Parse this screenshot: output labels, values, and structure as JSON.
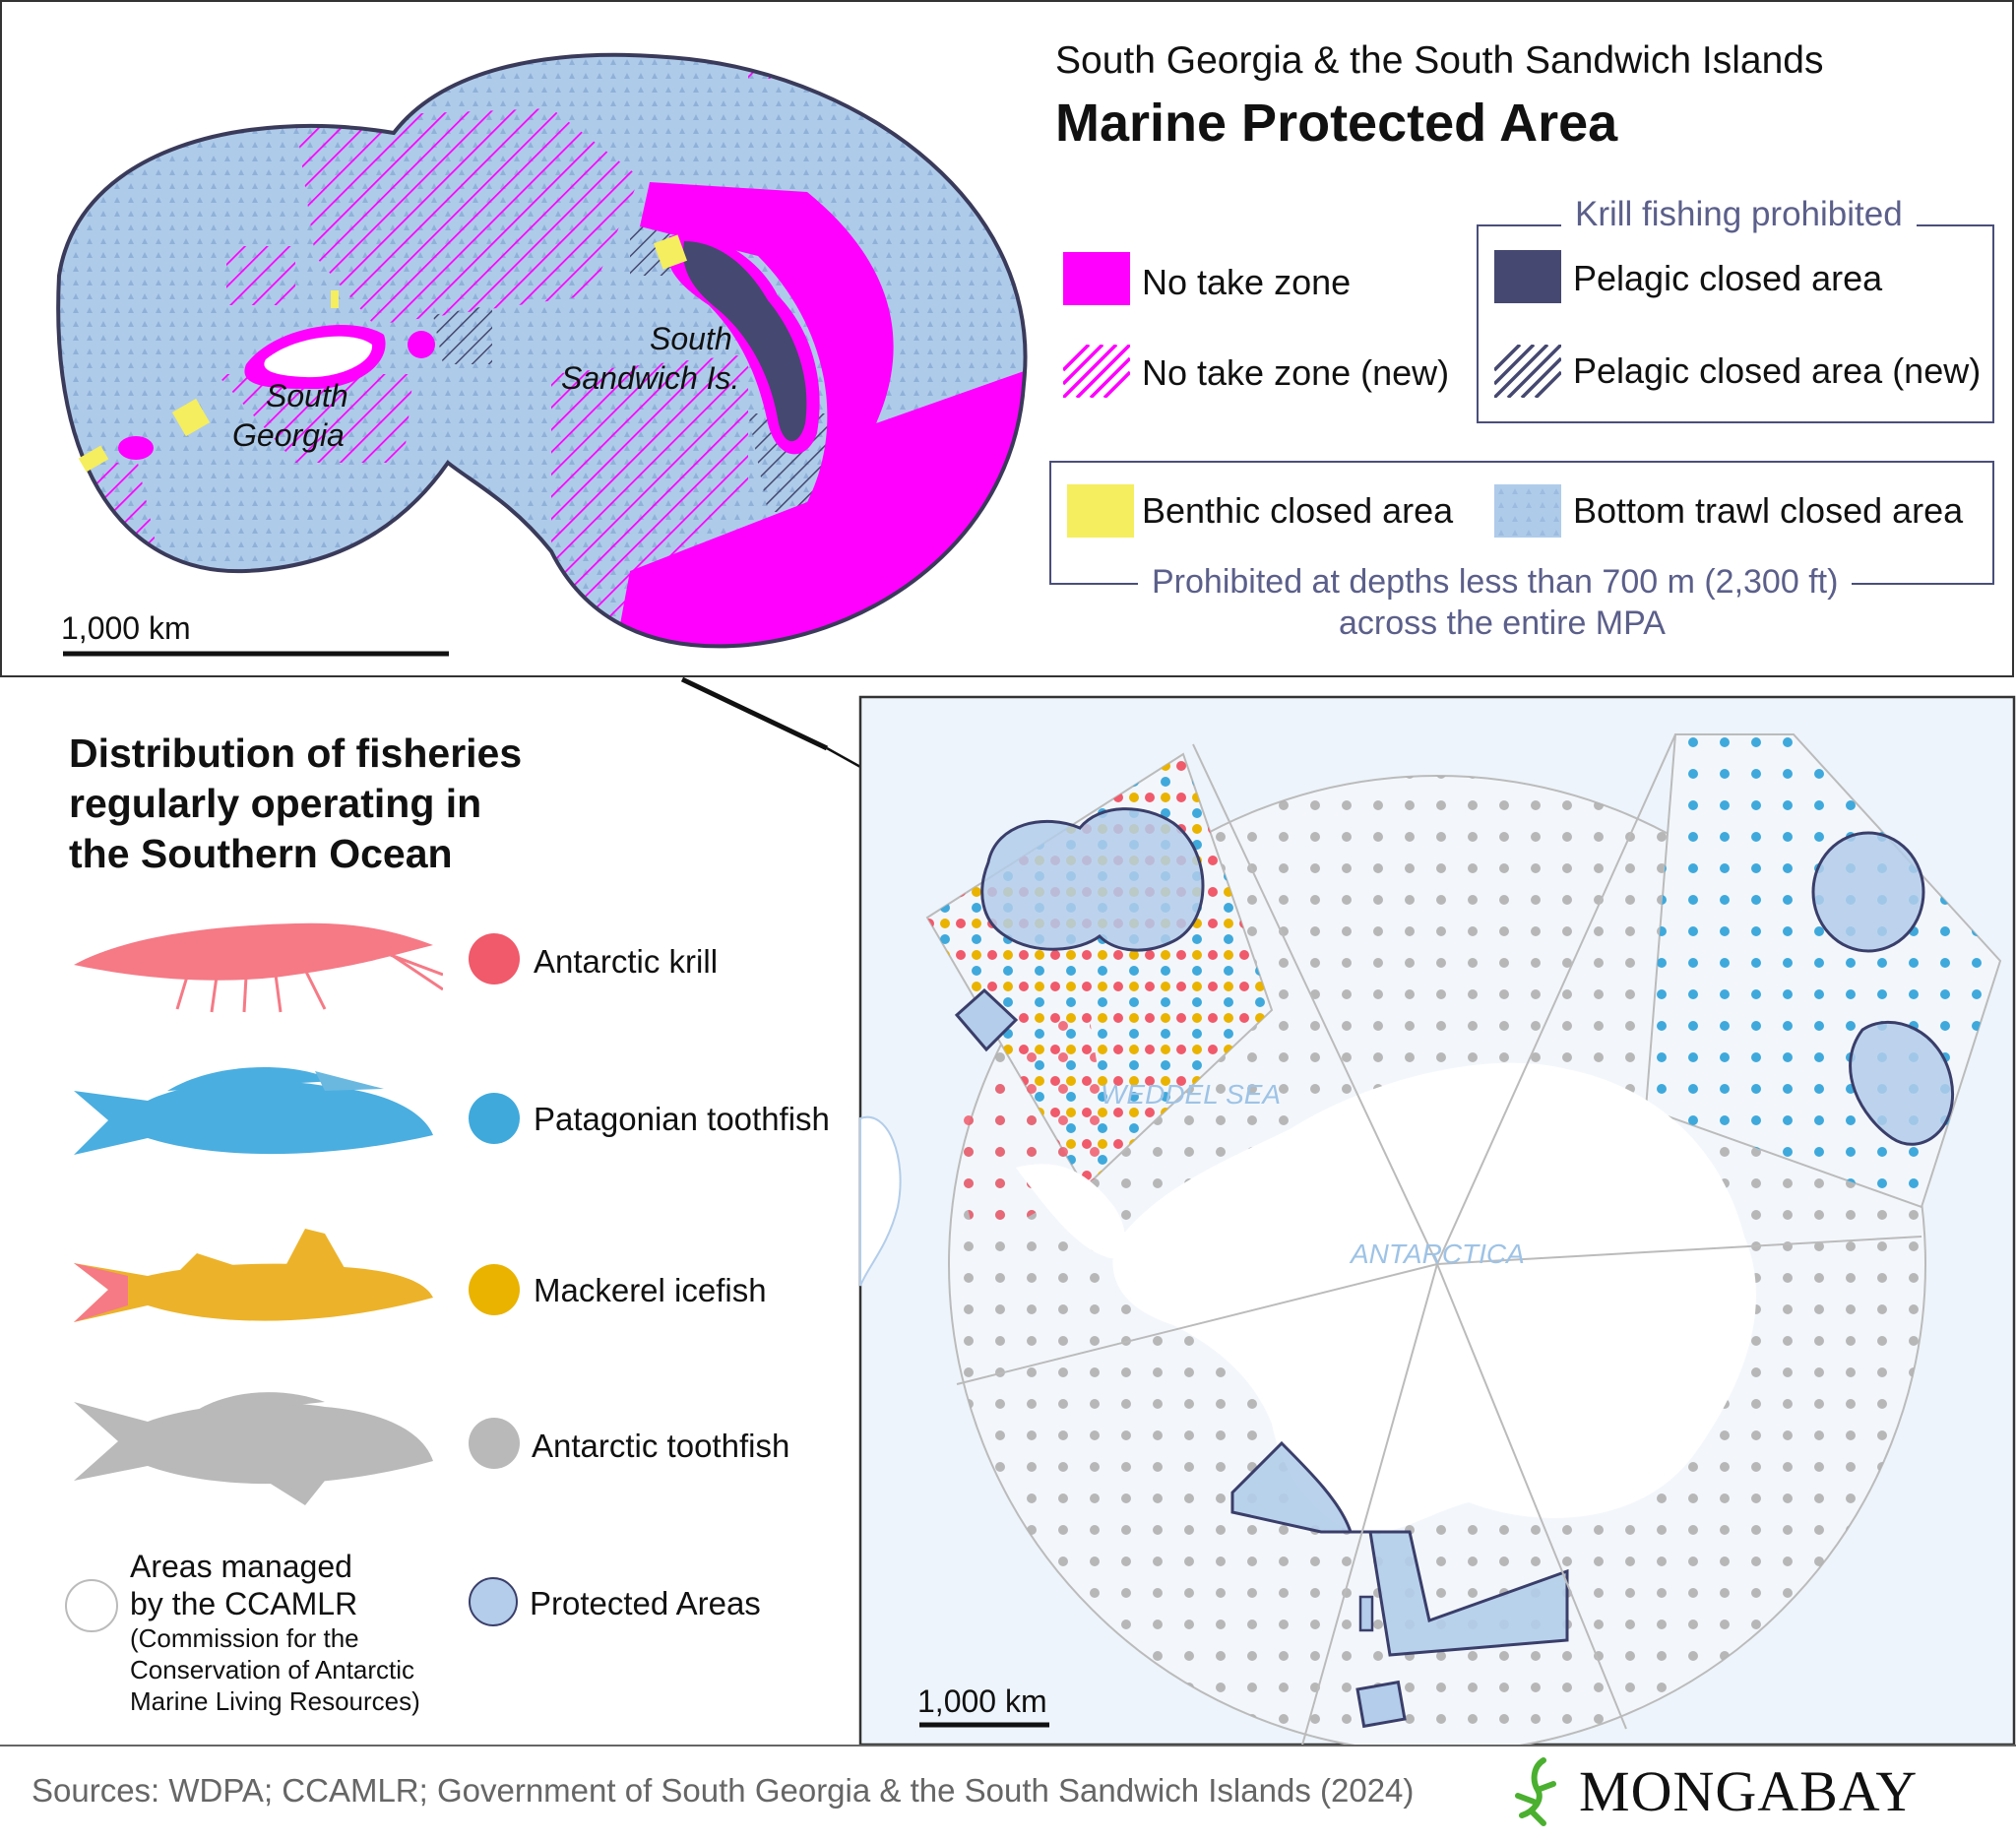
{
  "top_panel": {
    "title_line1": "South Georgia & the South Sandwich Islands",
    "title_line2": "Marine Protected Area",
    "place_labels": {
      "south_georgia_1": "South",
      "south_georgia_2": "Georgia",
      "south_sandwich_1": "South",
      "south_sandwich_2": "Sandwich Is."
    },
    "scale_label": "1,000 km",
    "legend": {
      "no_take": "No take zone",
      "no_take_new": "No take zone (new)",
      "krill_group_title": "Krill fishing prohibited",
      "pelagic": "Pelagic closed area",
      "pelagic_new": "Pelagic closed area (new)",
      "benthic": "Benthic closed area",
      "bottom_trawl": "Bottom trawl closed area",
      "depth_note_1": "Prohibited at depths less than 700 m (2,300 ft)",
      "depth_note_2": "across the entire MPA"
    }
  },
  "bottom_panel": {
    "title_lines": [
      "Distribution of fisheries",
      "regularly operating in",
      "the Southern Ocean"
    ],
    "species": [
      {
        "label": "Antarctic krill",
        "color": "#f05a6b"
      },
      {
        "label": "Patagonian toothfish",
        "color": "#3fa9dc"
      },
      {
        "label": "Mackerel icefish",
        "color": "#eab300"
      },
      {
        "label": "Antarctic toothfish",
        "color": "#b9b9b9"
      }
    ],
    "ccamlr_label_1": "Areas managed",
    "ccamlr_label_2": "by the CCAMLR",
    "ccamlr_note_1": "(Commission for the",
    "ccamlr_note_2": "Conservation of Antarctic",
    "ccamlr_note_3": "Marine Living Resources)",
    "protected_label": "Protected Areas",
    "map_labels": {
      "weddel": "WEDDEL SEA",
      "antarctica": "ANTARCTICA"
    },
    "scale_label": "1,000 km"
  },
  "footer": {
    "sources": "Sources: WDPA; CCAMLR; Government of South Georgia & the South Sandwich Islands (2024)",
    "brand": "MONGABAY"
  },
  "colors": {
    "no_take": "#ff00ff",
    "pelagic": "#454870",
    "benthic": "#f5ee5e",
    "bottom_trawl": "#a9c8ea",
    "protected": "#b3cdea"
  }
}
